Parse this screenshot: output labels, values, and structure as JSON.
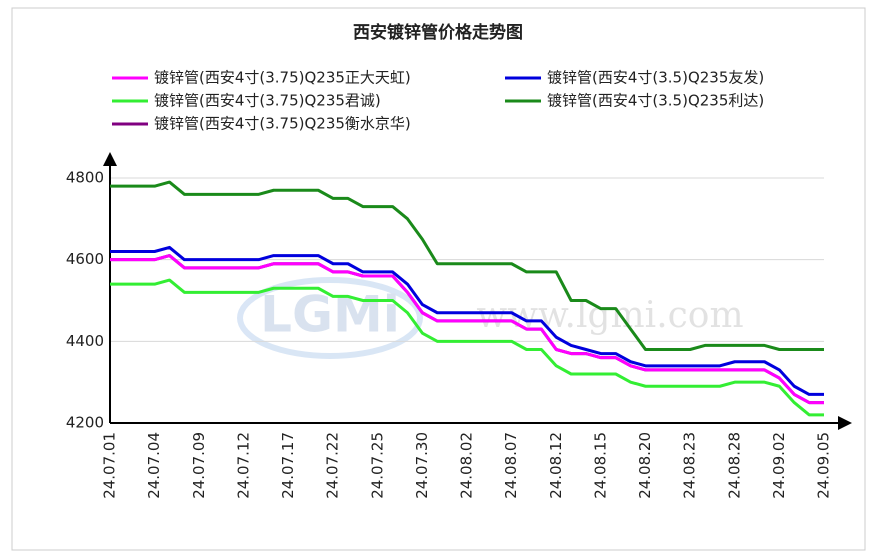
{
  "chart_data": {
    "type": "line",
    "title": "西安镀锌管价格走势图",
    "watermark": [
      "LGMi",
      "www.lgmi.com"
    ],
    "categories": [
      "24.07.01",
      null,
      null,
      "24.07.04",
      null,
      null,
      "24.07.09",
      null,
      null,
      "24.07.12",
      null,
      null,
      "24.07.17",
      null,
      null,
      "24.07.22",
      null,
      null,
      "24.07.25",
      null,
      null,
      "24.07.30",
      null,
      null,
      "24.08.02",
      null,
      null,
      "24.08.07",
      null,
      null,
      "24.08.12",
      null,
      null,
      "24.08.15",
      null,
      null,
      "24.08.20",
      null,
      null,
      "24.08.23",
      null,
      null,
      "24.08.28",
      null,
      null,
      "24.09.02",
      null,
      null,
      "24.09.05"
    ],
    "series": [
      {
        "name": "镀锌管(西安4寸(3.75)Q235正大天虹)",
        "color": "#ff00ff",
        "values": [
          4600,
          4600,
          4600,
          4600,
          4610,
          4580,
          4580,
          4580,
          4580,
          4580,
          4580,
          4590,
          4590,
          4590,
          4590,
          4570,
          4570,
          4560,
          4560,
          4560,
          4520,
          4470,
          4450,
          4450,
          4450,
          4450,
          4450,
          4450,
          4430,
          4430,
          4380,
          4370,
          4370,
          4360,
          4360,
          4340,
          4330,
          4330,
          4330,
          4330,
          4330,
          4330,
          4330,
          4330,
          4330,
          4310,
          4270,
          4250,
          4250
        ]
      },
      {
        "name": "镀锌管(西安4寸(3.5)Q235友发)",
        "color": "#0000dd",
        "values": [
          4620,
          4620,
          4620,
          4620,
          4630,
          4600,
          4600,
          4600,
          4600,
          4600,
          4600,
          4610,
          4610,
          4610,
          4610,
          4590,
          4590,
          4570,
          4570,
          4570,
          4540,
          4490,
          4470,
          4470,
          4470,
          4470,
          4470,
          4470,
          4450,
          4450,
          4410,
          4390,
          4380,
          4370,
          4370,
          4350,
          4340,
          4340,
          4340,
          4340,
          4340,
          4340,
          4350,
          4350,
          4350,
          4330,
          4290,
          4270,
          4270
        ]
      },
      {
        "name": "镀锌管(西安4寸(3.75)Q235君诚)",
        "color": "#33ee33",
        "values": [
          4540,
          4540,
          4540,
          4540,
          4550,
          4520,
          4520,
          4520,
          4520,
          4520,
          4520,
          4530,
          4530,
          4530,
          4530,
          4510,
          4510,
          4500,
          4500,
          4500,
          4470,
          4420,
          4400,
          4400,
          4400,
          4400,
          4400,
          4400,
          4380,
          4380,
          4340,
          4320,
          4320,
          4320,
          4320,
          4300,
          4290,
          4290,
          4290,
          4290,
          4290,
          4290,
          4300,
          4300,
          4300,
          4290,
          4250,
          4220,
          4220
        ]
      },
      {
        "name": "镀锌管(西安4寸(3.5)Q235利达)",
        "color": "#1a8a1a",
        "values": [
          4780,
          4780,
          4780,
          4780,
          4790,
          4760,
          4760,
          4760,
          4760,
          4760,
          4760,
          4770,
          4770,
          4770,
          4770,
          4750,
          4750,
          4730,
          4730,
          4730,
          4700,
          4650,
          4590,
          4590,
          4590,
          4590,
          4590,
          4590,
          4570,
          4570,
          4570,
          4500,
          4500,
          4480,
          4480,
          4430,
          4380,
          4380,
          4380,
          4380,
          4390,
          4390,
          4390,
          4390,
          4390,
          4380,
          4380,
          4380,
          4380
        ]
      },
      {
        "name": "镀锌管(西安4寸(3.75)Q235衡水京华)",
        "color": "#800080",
        "values": [
          4600,
          4600,
          4600,
          4600,
          4610,
          4580,
          4580,
          4580,
          4580,
          4580,
          4580,
          4590,
          4590,
          4590,
          4590,
          4570,
          4570,
          4560,
          4560,
          4560,
          4520,
          4470,
          4450,
          4450,
          4450,
          4450,
          4450,
          4450,
          4430,
          4430,
          4380,
          4370,
          4370,
          4360,
          4360,
          4340,
          4330,
          4330,
          4330,
          4330,
          4330,
          4330,
          4330,
          4330,
          4330,
          4310,
          4270,
          4250,
          4250
        ]
      }
    ],
    "ylim": [
      4200,
      4800
    ],
    "yticks": [
      4200,
      4400,
      4600,
      4800
    ],
    "grid": true
  }
}
